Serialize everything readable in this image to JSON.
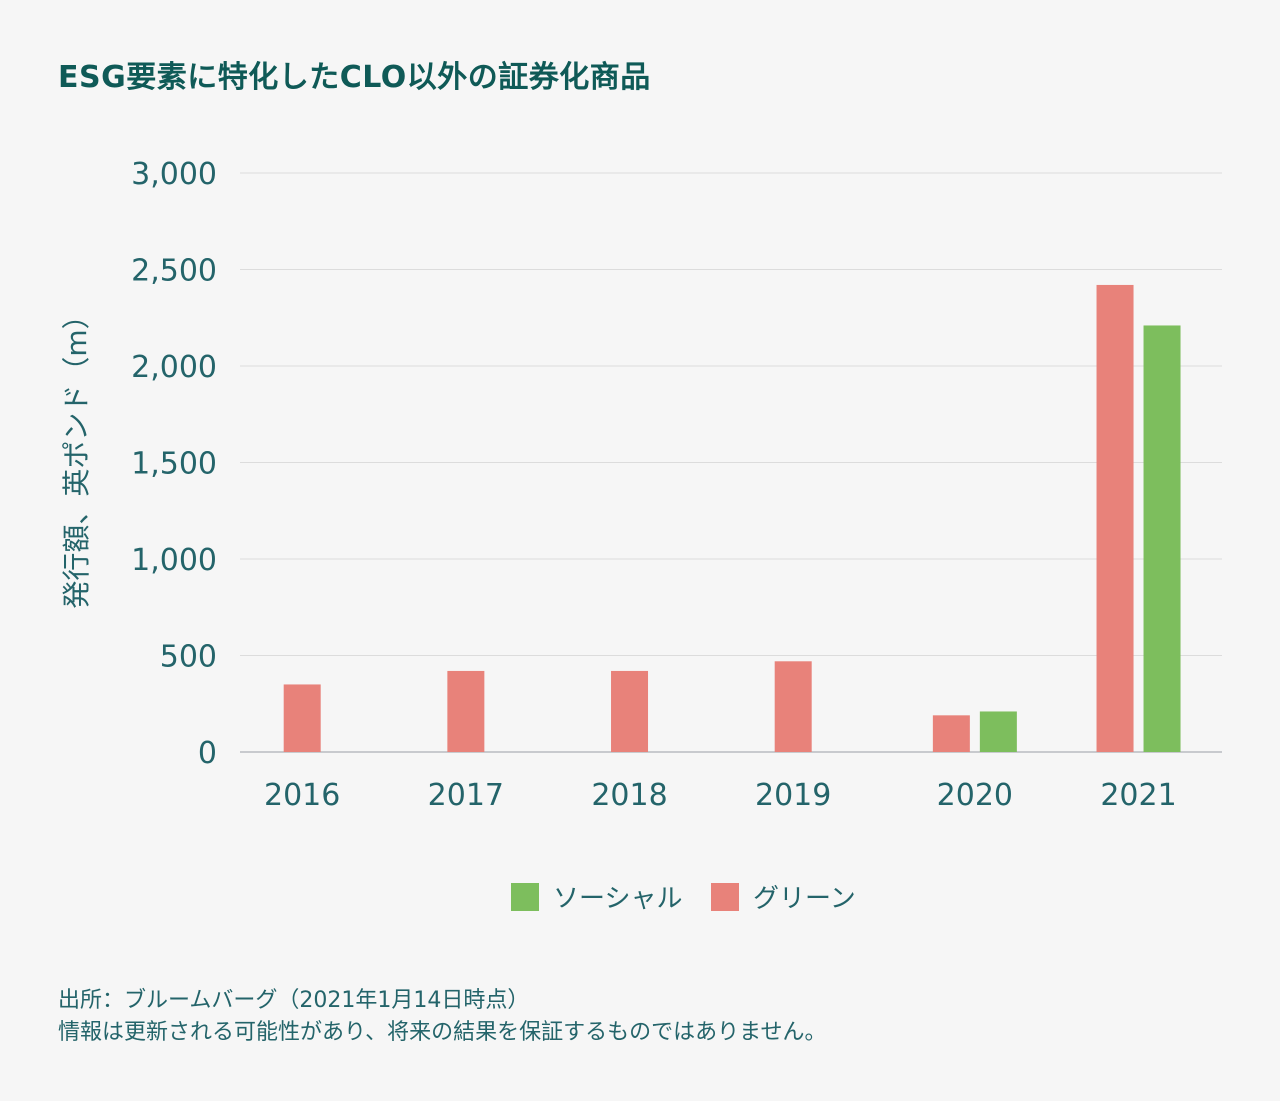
{
  "title": "ESG要素に特化したCLO以外の証券化商品",
  "chart_data": {
    "type": "bar",
    "title": "ESG要素に特化したCLO以外の証券化商品",
    "xlabel": "",
    "ylabel": "発行額、英ポンド（m）",
    "ylim": [
      0,
      3000
    ],
    "yticks": [
      "0",
      "500",
      "1,000",
      "1,500",
      "2,000",
      "2,500",
      "3,000"
    ],
    "ytick_values": [
      0,
      500,
      1000,
      1500,
      2000,
      2500,
      3000
    ],
    "categories": [
      "2016",
      "2017",
      "2018",
      "2019",
      "2020",
      "2021"
    ],
    "series": [
      {
        "name": "グリーン",
        "color": "#e8827a",
        "values": [
          350,
          420,
          420,
          470,
          190,
          2420
        ]
      },
      {
        "name": "ソーシャル",
        "color": "#7dbe5d",
        "values": [
          null,
          null,
          null,
          null,
          210,
          2210
        ]
      }
    ],
    "legend": [
      {
        "name": "ソーシャル",
        "color": "#7dbe5d"
      },
      {
        "name": "グリーン",
        "color": "#e8827a"
      }
    ],
    "grid": true,
    "legend_position": "bottom-center"
  },
  "source": {
    "line1": "出所：ブルームバーグ（2021年1月14日時点）",
    "line2": "情報は更新される可能性があり、将来の結果を保証するものではありません。"
  }
}
